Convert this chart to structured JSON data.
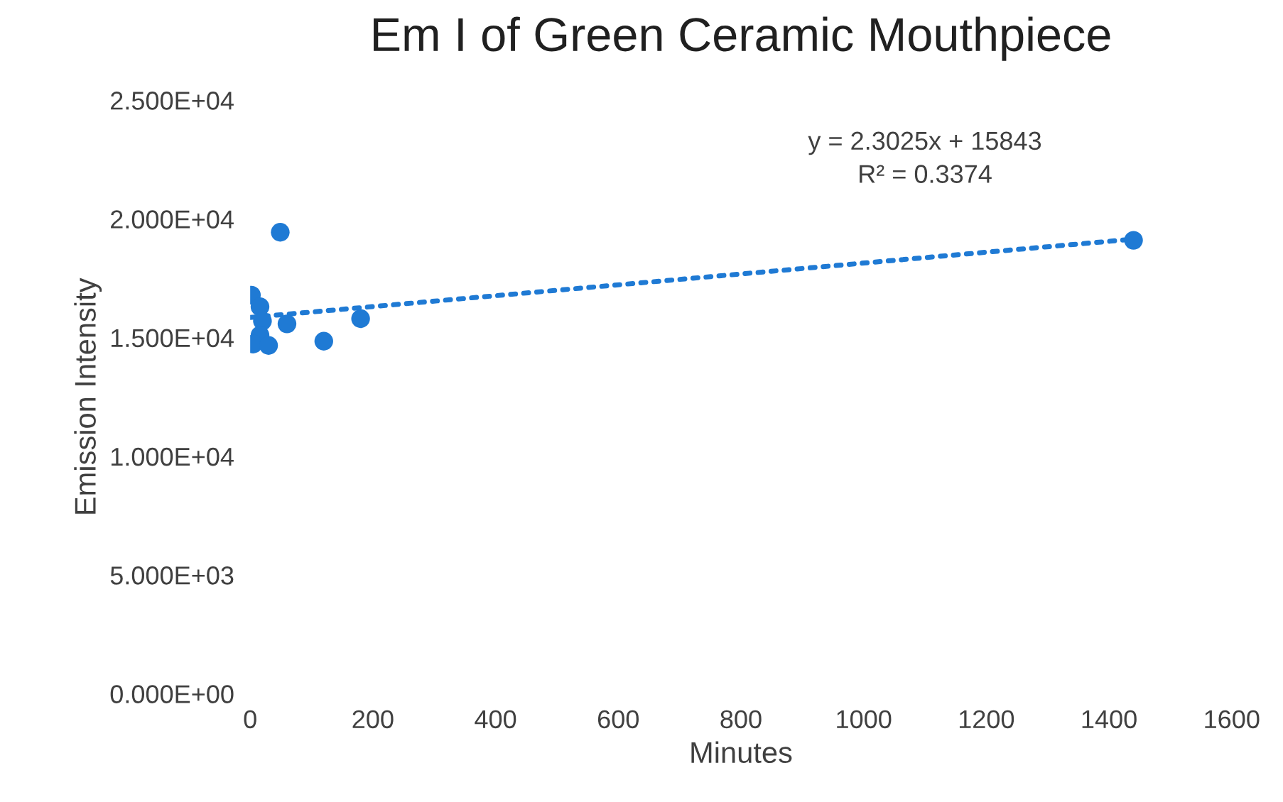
{
  "chart_data": {
    "type": "scatter",
    "title": "Em I of Green Ceramic Mouthpiece",
    "xlabel": "Minutes",
    "ylabel": "Emission Intensity",
    "xlim": [
      0,
      1600
    ],
    "xticks": [
      0,
      200,
      400,
      600,
      800,
      1000,
      1200,
      1400,
      1600
    ],
    "ylim": [
      0,
      25000
    ],
    "yticks": [
      {
        "value": 0,
        "label": "0.000E+00"
      },
      {
        "value": 5000,
        "label": "5.000E+03"
      },
      {
        "value": 10000,
        "label": "1.000E+04"
      },
      {
        "value": 15000,
        "label": "1.500E+04"
      },
      {
        "value": 20000,
        "label": "2.000E+04"
      },
      {
        "value": 25000,
        "label": "2.500E+04"
      }
    ],
    "grid": false,
    "marker": "circle",
    "series": [
      {
        "color": "#1f7ad4",
        "x": [
          2,
          16,
          20,
          16,
          5,
          30,
          49,
          60,
          120,
          180,
          1440
        ],
        "values": [
          16790,
          16300,
          15700,
          15100,
          14730,
          14670,
          19440,
          15580,
          14850,
          15800,
          19100
        ]
      },
      {
        "type": "line",
        "color": "#1f7ad4",
        "line_style": "dotted",
        "marker": "none",
        "x": [
          0,
          1440
        ],
        "values": [
          15850,
          19150
        ]
      }
    ],
    "annotations": [
      "y = 2.3025x + 15843\nR² = 0.3374"
    ]
  }
}
